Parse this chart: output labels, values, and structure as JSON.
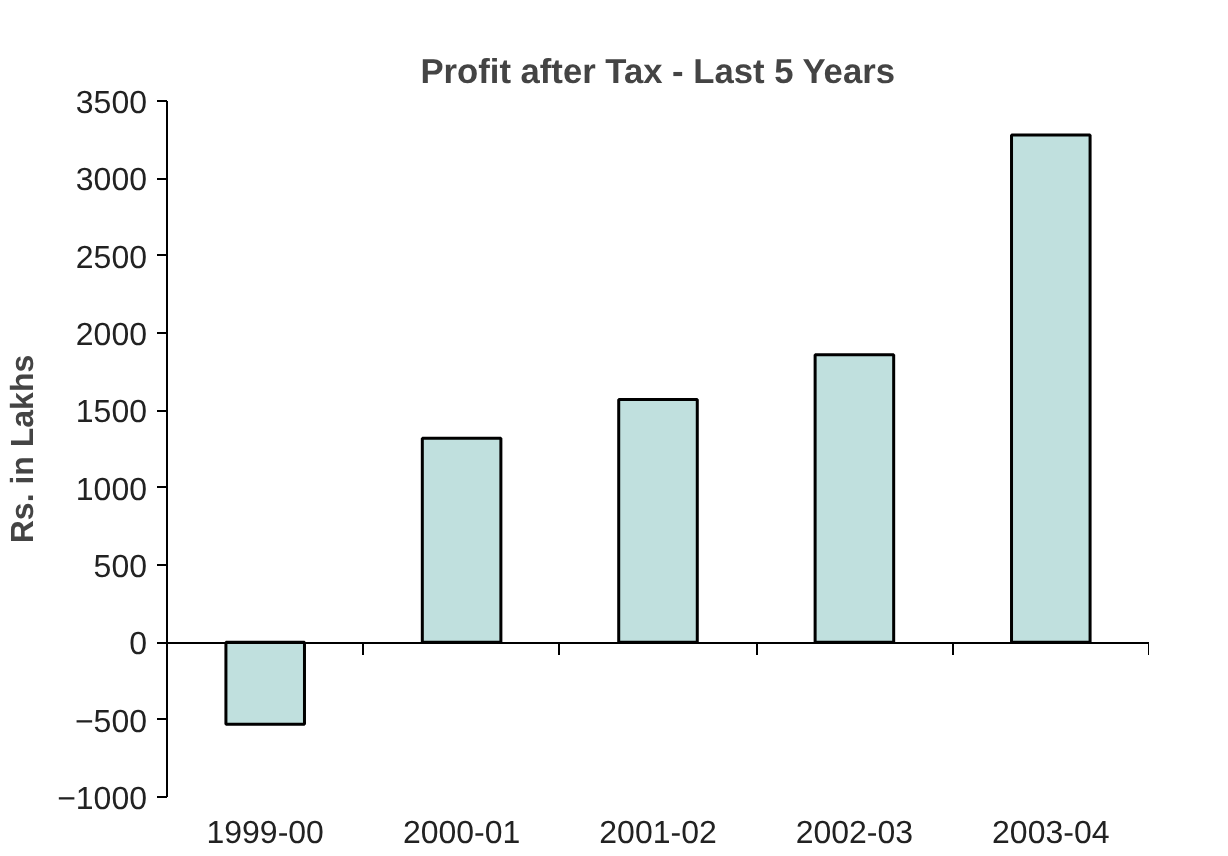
{
  "chart_data": {
    "type": "bar",
    "title": "Profit after Tax - Last 5 Years",
    "ylabel": "Rs. in Lakhs",
    "categories": [
      "1999-00",
      "2000-01",
      "2001-02",
      "2002-03",
      "2003-04"
    ],
    "values": [
      -530,
      1320,
      1570,
      1860,
      3280
    ],
    "color": "#c0e0de",
    "ylim": [
      -1000,
      3500
    ],
    "yticks": [
      -1000,
      -500,
      0,
      500,
      1000,
      1500,
      2000,
      2500,
      3000,
      3500
    ]
  }
}
